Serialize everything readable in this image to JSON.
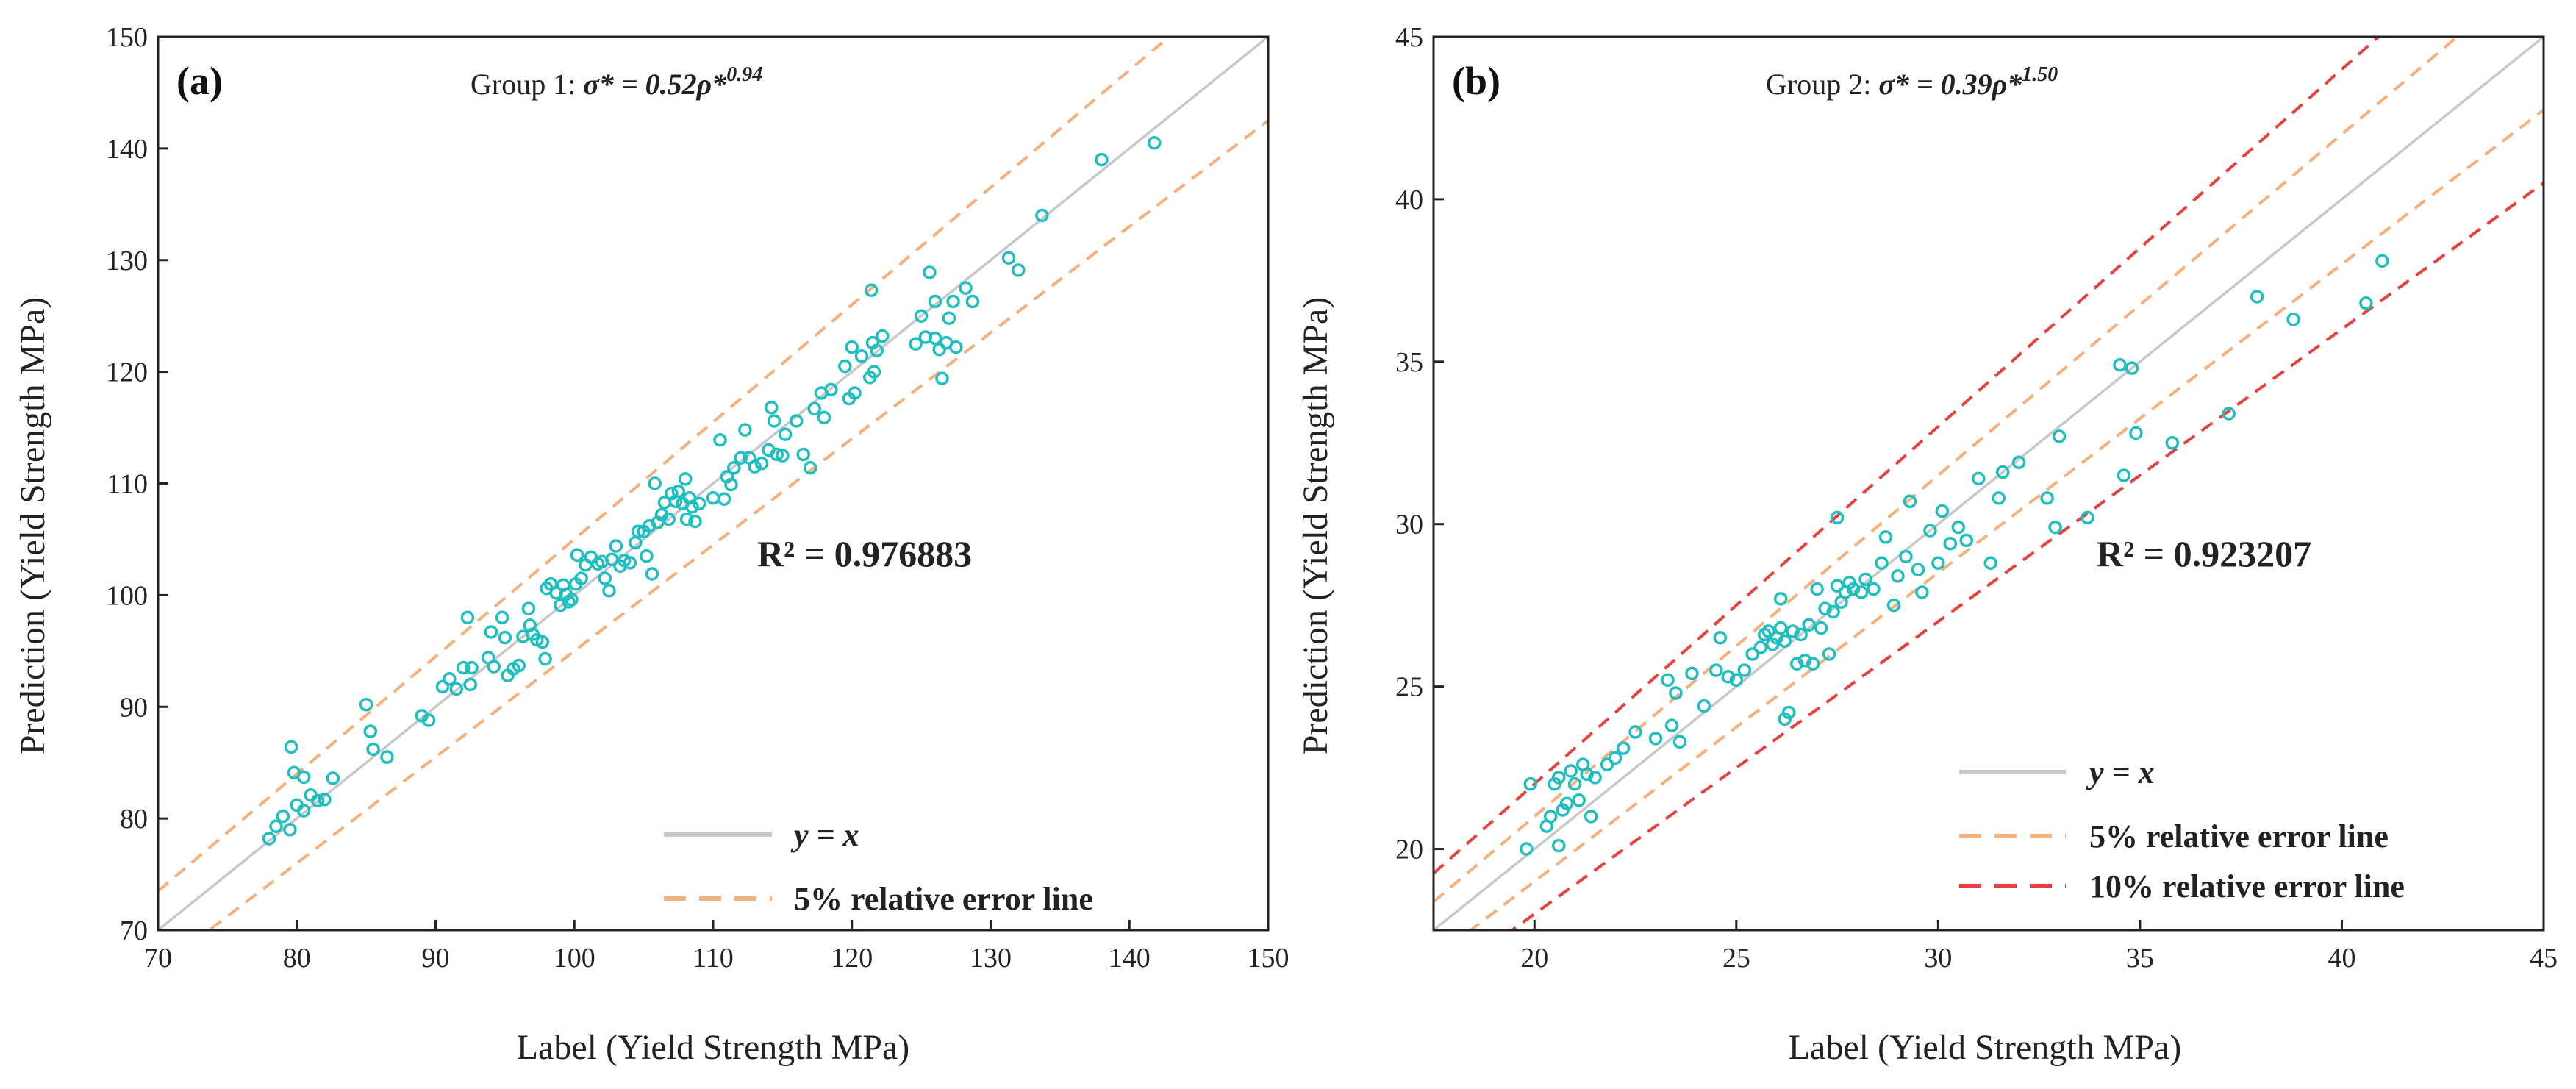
{
  "colors": {
    "points": "#1fbfbf",
    "identity": "#c8c8c8",
    "err5": "#f6b07c",
    "err10": "#e8403e",
    "axis": "#222222"
  },
  "chart_data": [
    {
      "type": "scatter",
      "panel_label": "(b)",
      "xlabel": "Label  (Yield Strength MPa)",
      "ylabel": "Prediction  (Yield Strength MPa)",
      "xlim": [
        17.5,
        45
      ],
      "ylim": [
        17.5,
        45
      ],
      "xticks": [
        20,
        25,
        30,
        35,
        40,
        45
      ],
      "yticks": [
        20,
        25,
        30,
        35,
        40,
        45
      ],
      "title_prefix": "Group 2: ",
      "title_math": "σ* = 0.39ρ*",
      "title_exp": "1.50",
      "r2_text": "R² = 0.923207",
      "legend": [
        "y = x",
        "5% relative error line",
        "10% relative error line"
      ],
      "error_bands": [
        0.05,
        0.1
      ],
      "points": [
        [
          19.8,
          20.0
        ],
        [
          19.9,
          22.0
        ],
        [
          20.3,
          20.7
        ],
        [
          20.4,
          21.0
        ],
        [
          20.5,
          22.0
        ],
        [
          20.6,
          22.2
        ],
        [
          20.6,
          20.1
        ],
        [
          20.7,
          21.2
        ],
        [
          20.8,
          21.4
        ],
        [
          20.9,
          22.4
        ],
        [
          21.0,
          22.0
        ],
        [
          21.1,
          21.5
        ],
        [
          21.2,
          22.6
        ],
        [
          21.3,
          22.3
        ],
        [
          21.4,
          21.0
        ],
        [
          21.5,
          22.2
        ],
        [
          21.8,
          22.6
        ],
        [
          22.0,
          22.8
        ],
        [
          22.2,
          23.1
        ],
        [
          22.5,
          23.6
        ],
        [
          23.0,
          23.4
        ],
        [
          23.3,
          25.2
        ],
        [
          23.4,
          23.8
        ],
        [
          23.5,
          24.8
        ],
        [
          23.6,
          23.3
        ],
        [
          23.9,
          25.4
        ],
        [
          24.2,
          24.4
        ],
        [
          24.5,
          25.5
        ],
        [
          24.6,
          26.5
        ],
        [
          24.8,
          25.3
        ],
        [
          25.0,
          25.2
        ],
        [
          25.2,
          25.5
        ],
        [
          25.4,
          26.0
        ],
        [
          25.6,
          26.2
        ],
        [
          25.7,
          26.6
        ],
        [
          25.8,
          26.7
        ],
        [
          25.9,
          26.3
        ],
        [
          26.0,
          26.5
        ],
        [
          26.1,
          26.8
        ],
        [
          26.1,
          27.7
        ],
        [
          26.2,
          26.4
        ],
        [
          26.2,
          24.0
        ],
        [
          26.3,
          24.2
        ],
        [
          26.4,
          26.7
        ],
        [
          26.5,
          25.7
        ],
        [
          26.6,
          26.6
        ],
        [
          26.7,
          25.8
        ],
        [
          26.8,
          26.9
        ],
        [
          26.9,
          25.7
        ],
        [
          27.0,
          28.0
        ],
        [
          27.1,
          26.8
        ],
        [
          27.2,
          27.4
        ],
        [
          27.3,
          26.0
        ],
        [
          27.4,
          27.3
        ],
        [
          27.5,
          30.2
        ],
        [
          27.5,
          28.1
        ],
        [
          27.6,
          27.6
        ],
        [
          27.7,
          27.9
        ],
        [
          27.8,
          28.2
        ],
        [
          27.9,
          28.0
        ],
        [
          28.1,
          27.9
        ],
        [
          28.2,
          28.3
        ],
        [
          28.4,
          28.0
        ],
        [
          28.6,
          28.8
        ],
        [
          28.7,
          29.6
        ],
        [
          28.9,
          27.5
        ],
        [
          29.0,
          28.4
        ],
        [
          29.2,
          29.0
        ],
        [
          29.3,
          30.7
        ],
        [
          29.5,
          28.6
        ],
        [
          29.6,
          27.9
        ],
        [
          29.8,
          29.8
        ],
        [
          30.0,
          28.8
        ],
        [
          30.1,
          30.4
        ],
        [
          30.3,
          29.4
        ],
        [
          30.5,
          29.9
        ],
        [
          30.7,
          29.5
        ],
        [
          31.0,
          31.4
        ],
        [
          31.3,
          28.8
        ],
        [
          31.5,
          30.8
        ],
        [
          31.6,
          31.6
        ],
        [
          32.0,
          31.9
        ],
        [
          32.7,
          30.8
        ],
        [
          32.9,
          29.9
        ],
        [
          33.0,
          32.7
        ],
        [
          33.7,
          30.2
        ],
        [
          34.5,
          34.9
        ],
        [
          34.6,
          31.5
        ],
        [
          34.8,
          34.8
        ],
        [
          34.9,
          32.8
        ],
        [
          35.8,
          32.5
        ],
        [
          37.2,
          33.4
        ],
        [
          37.9,
          37.0
        ],
        [
          38.8,
          36.3
        ],
        [
          40.6,
          36.8
        ],
        [
          41.0,
          38.1
        ]
      ]
    },
    {
      "type": "scatter",
      "panel_label": "(a)",
      "xlabel": "Label (Yield Strength MPa)",
      "ylabel": "Prediction (Yield Strength MPa)",
      "xlim": [
        70,
        150
      ],
      "ylim": [
        70,
        150
      ],
      "xticks": [
        70,
        80,
        90,
        100,
        110,
        120,
        130,
        140,
        150
      ],
      "yticks": [
        70,
        80,
        90,
        100,
        110,
        120,
        130,
        140,
        150
      ],
      "title_prefix": "Group 1: ",
      "title_math": "σ* = 0.52ρ*",
      "title_exp": "0.94",
      "r2_text": "R² = 0.976883",
      "legend": [
        "y = x",
        "5% relative error line"
      ],
      "error_bands": [
        0.05
      ],
      "points": [
        [
          78,
          78.2
        ],
        [
          78.5,
          79.3
        ],
        [
          79,
          80.2
        ],
        [
          79.5,
          79
        ],
        [
          79.6,
          86.4
        ],
        [
          79.8,
          84.1
        ],
        [
          80,
          81.2
        ],
        [
          80.5,
          80.7
        ],
        [
          80.5,
          83.7
        ],
        [
          81,
          82.1
        ],
        [
          81.5,
          81.6
        ],
        [
          82,
          81.7
        ],
        [
          82.6,
          83.6
        ],
        [
          85,
          90.2
        ],
        [
          85.3,
          87.8
        ],
        [
          85.5,
          86.2
        ],
        [
          86.5,
          85.5
        ],
        [
          89,
          89.2
        ],
        [
          89.5,
          88.8
        ],
        [
          90.5,
          91.8
        ],
        [
          91,
          92.5
        ],
        [
          91.5,
          91.6
        ],
        [
          92,
          93.5
        ],
        [
          92.3,
          98
        ],
        [
          92.5,
          92
        ],
        [
          92.6,
          93.5
        ],
        [
          93.8,
          94.4
        ],
        [
          94,
          96.7
        ],
        [
          94.2,
          93.6
        ],
        [
          94.8,
          98
        ],
        [
          95,
          96.2
        ],
        [
          95.2,
          92.8
        ],
        [
          95.6,
          93.4
        ],
        [
          96,
          93.7
        ],
        [
          96.3,
          96.3
        ],
        [
          96.7,
          98.8
        ],
        [
          96.8,
          97.3
        ],
        [
          97,
          96.5
        ],
        [
          97.3,
          96
        ],
        [
          97.7,
          95.8
        ],
        [
          97.9,
          94.3
        ],
        [
          98,
          100.6
        ],
        [
          98.3,
          101
        ],
        [
          98.7,
          100.2
        ],
        [
          99,
          99.1
        ],
        [
          99.2,
          100.9
        ],
        [
          99.4,
          100.1
        ],
        [
          99.6,
          99.4
        ],
        [
          99.8,
          99.6
        ],
        [
          100.1,
          101
        ],
        [
          100.2,
          103.6
        ],
        [
          100.5,
          101.5
        ],
        [
          100.8,
          102.7
        ],
        [
          101.2,
          103.4
        ],
        [
          101.7,
          102.8
        ],
        [
          102,
          103
        ],
        [
          102.2,
          101.5
        ],
        [
          102.5,
          100.4
        ],
        [
          102.7,
          103.2
        ],
        [
          103,
          104.4
        ],
        [
          103.3,
          102.6
        ],
        [
          103.6,
          103.1
        ],
        [
          104,
          102.9
        ],
        [
          104.4,
          104.7
        ],
        [
          104.6,
          105.7
        ],
        [
          105,
          105.7
        ],
        [
          105.2,
          103.5
        ],
        [
          105.4,
          106.2
        ],
        [
          105.6,
          101.9
        ],
        [
          105.8,
          110
        ],
        [
          106,
          106.5
        ],
        [
          106.3,
          107.2
        ],
        [
          106.5,
          108.3
        ],
        [
          106.8,
          106.8
        ],
        [
          107,
          109.1
        ],
        [
          107.3,
          108.4
        ],
        [
          107.5,
          109.3
        ],
        [
          107.8,
          108.2
        ],
        [
          108,
          110.4
        ],
        [
          108.1,
          106.8
        ],
        [
          108.3,
          108.7
        ],
        [
          108.5,
          107.9
        ],
        [
          108.7,
          106.6
        ],
        [
          109,
          108.2
        ],
        [
          110,
          108.7
        ],
        [
          110.5,
          113.9
        ],
        [
          110.8,
          108.6
        ],
        [
          111,
          110.6
        ],
        [
          111.3,
          109.9
        ],
        [
          111.5,
          111.4
        ],
        [
          112,
          112.3
        ],
        [
          112.3,
          114.8
        ],
        [
          112.6,
          112.3
        ],
        [
          113,
          111.5
        ],
        [
          113.5,
          111.8
        ],
        [
          114,
          113
        ],
        [
          114.2,
          116.8
        ],
        [
          114.4,
          115.6
        ],
        [
          114.6,
          112.6
        ],
        [
          115,
          112.5
        ],
        [
          115.2,
          114.4
        ],
        [
          116,
          115.6
        ],
        [
          116.5,
          112.6
        ],
        [
          117,
          111.4
        ],
        [
          117.3,
          116.7
        ],
        [
          117.8,
          118.1
        ],
        [
          118,
          115.9
        ],
        [
          118.5,
          118.4
        ],
        [
          119.5,
          120.5
        ],
        [
          119.8,
          117.6
        ],
        [
          120,
          122.2
        ],
        [
          120.2,
          118.1
        ],
        [
          120.7,
          121.4
        ],
        [
          121.3,
          119.5
        ],
        [
          121.4,
          127.3
        ],
        [
          121.5,
          122.6
        ],
        [
          121.6,
          120
        ],
        [
          121.8,
          121.9
        ],
        [
          122.2,
          123.2
        ],
        [
          124.6,
          122.5
        ],
        [
          125,
          125
        ],
        [
          125.3,
          123.1
        ],
        [
          125.6,
          128.9
        ],
        [
          126,
          123
        ],
        [
          126,
          126.3
        ],
        [
          126.3,
          122
        ],
        [
          126.5,
          119.4
        ],
        [
          126.8,
          122.6
        ],
        [
          127,
          124.8
        ],
        [
          127.3,
          126.3
        ],
        [
          127.5,
          122.2
        ],
        [
          128.2,
          127.5
        ],
        [
          128.7,
          126.3
        ],
        [
          131.3,
          130.2
        ],
        [
          132,
          129.1
        ],
        [
          133.7,
          134
        ],
        [
          138,
          139
        ],
        [
          141.8,
          140.5
        ]
      ]
    }
  ]
}
